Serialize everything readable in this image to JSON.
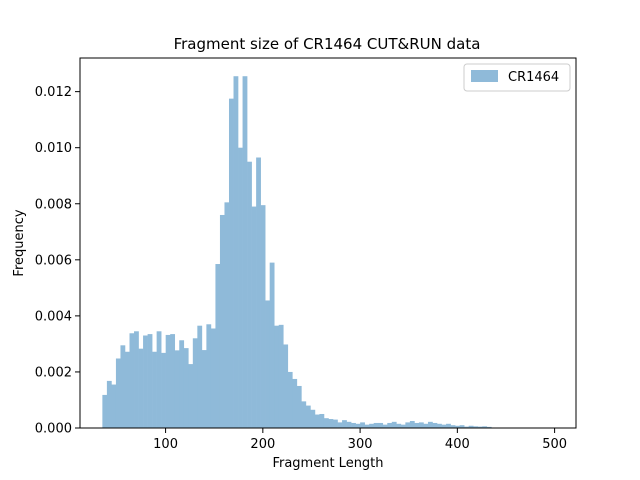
{
  "chart_data": {
    "type": "bar",
    "title": "Fragment size of CR1464 CUT&RUN data",
    "xlabel": "Fragment Length",
    "ylabel": "Frequency",
    "xlim": [
      12,
      522
    ],
    "ylim": [
      0,
      0.0132
    ],
    "xticks": [
      100,
      200,
      300,
      400,
      500
    ],
    "xtick_labels": [
      "100",
      "200",
      "300",
      "400",
      "500"
    ],
    "yticks": [
      0,
      0.002,
      0.004,
      0.006,
      0.008,
      0.01,
      0.012
    ],
    "ytick_labels": [
      "0.000",
      "0.002",
      "0.004",
      "0.006",
      "0.008",
      "0.010",
      "0.012"
    ],
    "legend": {
      "position": "top-right",
      "entries": [
        "CR1464"
      ]
    },
    "grid": false,
    "series": [
      {
        "name": "CR1464",
        "color": "#8fbad9",
        "bin_start": 35.0,
        "bin_width": 4.65,
        "values": [
          0.00118,
          0.00168,
          0.00155,
          0.00248,
          0.00295,
          0.00272,
          0.00338,
          0.00345,
          0.00283,
          0.0033,
          0.00335,
          0.00272,
          0.00345,
          0.00268,
          0.00332,
          0.00335,
          0.00277,
          0.00313,
          0.00285,
          0.00228,
          0.0032,
          0.00365,
          0.00278,
          0.0037,
          0.00355,
          0.00585,
          0.0076,
          0.00805,
          0.01175,
          0.01255,
          0.01,
          0.01255,
          0.0095,
          0.0079,
          0.00965,
          0.00795,
          0.00455,
          0.0059,
          0.00365,
          0.00368,
          0.00298,
          0.002,
          0.00175,
          0.0015,
          0.00095,
          0.0008,
          0.00065,
          0.00048,
          0.0005,
          0.00035,
          0.00032,
          0.0003,
          0.0002,
          0.00028,
          0.00022,
          0.00018,
          0.00015,
          0.0002,
          0.00012,
          0.00015,
          0.00018,
          0.00018,
          0.00012,
          0.00018,
          0.00022,
          0.00015,
          0.00012,
          0.0002,
          0.00025,
          0.00018,
          0.0002,
          0.00015,
          0.00022,
          0.00018,
          0.00015,
          0.00012,
          0.00015,
          0.0001,
          8e-05,
          0.0001,
          5e-05,
          8e-05,
          6e-05,
          5e-05,
          6e-05,
          4e-05
        ]
      }
    ]
  }
}
